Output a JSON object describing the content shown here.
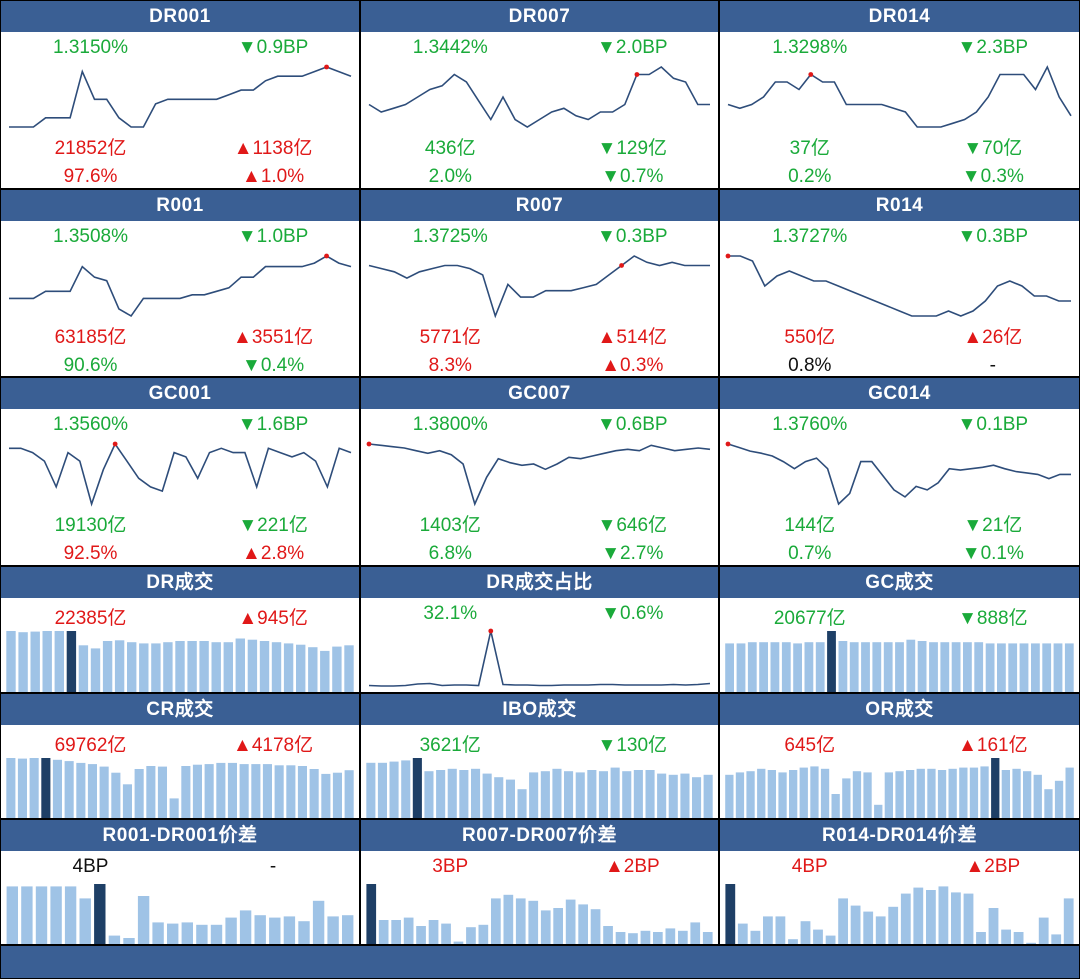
{
  "colors": {
    "header_bg": "#3a5f94",
    "up": "#e01818",
    "down": "#1aaa3a",
    "neutral": "#111111",
    "line": "#2e4d7a",
    "bar": "#9fc3e6",
    "bar_highlight": "#1e3f66",
    "grid_lines": "#000000"
  },
  "panels": [
    {
      "id": "dr001",
      "title": "DR001",
      "kind": "full",
      "rate": "1.3150%",
      "rate_color": "down",
      "rate_change": "▼0.9BP",
      "rate_change_color": "down",
      "volume": "21852亿",
      "volume_color": "up",
      "volume_change": "▲1138亿",
      "volume_change_color": "up",
      "share": "97.6%",
      "share_color": "up",
      "share_change": "▲1.0%",
      "share_change_color": "up",
      "chart_data": {
        "type": "line",
        "values": [
          1.29,
          1.29,
          1.29,
          1.3,
          1.3,
          1.3,
          1.35,
          1.32,
          1.32,
          1.3,
          1.29,
          1.29,
          1.315,
          1.32,
          1.32,
          1.32,
          1.32,
          1.32,
          1.325,
          1.33,
          1.33,
          1.34,
          1.345,
          1.345,
          1.345,
          1.35,
          1.355,
          1.35,
          1.345
        ],
        "marker_index": 26
      }
    },
    {
      "id": "dr007",
      "title": "DR007",
      "kind": "full",
      "rate": "1.3442%",
      "rate_color": "down",
      "rate_change": "▼2.0BP",
      "rate_change_color": "down",
      "volume": "436亿",
      "volume_color": "down",
      "volume_change": "▼129亿",
      "volume_change_color": "down",
      "share": "2.0%",
      "share_color": "down",
      "share_change": "▼0.7%",
      "share_change_color": "down",
      "chart_data": {
        "type": "line",
        "values": [
          1.32,
          1.31,
          1.315,
          1.32,
          1.33,
          1.34,
          1.345,
          1.36,
          1.35,
          1.325,
          1.3,
          1.33,
          1.3,
          1.29,
          1.3,
          1.31,
          1.315,
          1.305,
          1.3,
          1.31,
          1.31,
          1.32,
          1.36,
          1.36,
          1.37,
          1.355,
          1.35,
          1.32,
          1.32
        ],
        "marker_index": 22
      }
    },
    {
      "id": "dr014",
      "title": "DR014",
      "kind": "full",
      "rate": "1.3298%",
      "rate_color": "down",
      "rate_change": "▼2.3BP",
      "rate_change_color": "down",
      "volume": "37亿",
      "volume_color": "down",
      "volume_change": "▼70亿",
      "volume_change_color": "down",
      "share": "0.2%",
      "share_color": "down",
      "share_change": "▼0.3%",
      "share_change_color": "down",
      "chart_data": {
        "type": "line",
        "values": [
          1.3,
          1.295,
          1.3,
          1.31,
          1.33,
          1.33,
          1.32,
          1.34,
          1.33,
          1.33,
          1.3,
          1.3,
          1.3,
          1.3,
          1.295,
          1.29,
          1.27,
          1.27,
          1.27,
          1.275,
          1.28,
          1.29,
          1.31,
          1.34,
          1.34,
          1.34,
          1.32,
          1.35,
          1.31,
          1.285
        ],
        "marker_index": 7
      }
    },
    {
      "id": "r001",
      "title": "R001",
      "kind": "full",
      "rate": "1.3508%",
      "rate_color": "down",
      "rate_change": "▼1.0BP",
      "rate_change_color": "down",
      "volume": "63185亿",
      "volume_color": "up",
      "volume_change": "▲3551亿",
      "volume_change_color": "up",
      "share": "90.6%",
      "share_color": "down",
      "share_change": "▼0.4%",
      "share_change_color": "down",
      "chart_data": {
        "type": "line",
        "values": [
          1.3,
          1.3,
          1.3,
          1.31,
          1.31,
          1.31,
          1.345,
          1.33,
          1.325,
          1.285,
          1.275,
          1.3,
          1.3,
          1.3,
          1.3,
          1.305,
          1.305,
          1.31,
          1.315,
          1.33,
          1.33,
          1.345,
          1.345,
          1.345,
          1.345,
          1.35,
          1.36,
          1.35,
          1.345
        ],
        "marker_index": 26
      }
    },
    {
      "id": "r007",
      "title": "R007",
      "kind": "full",
      "rate": "1.3725%",
      "rate_color": "down",
      "rate_change": "▼0.3BP",
      "rate_change_color": "down",
      "volume": "5771亿",
      "volume_color": "up",
      "volume_change": "▲514亿",
      "volume_change_color": "up",
      "share": "8.3%",
      "share_color": "up",
      "share_change": "▲0.3%",
      "share_change_color": "up",
      "chart_data": {
        "type": "line",
        "values": [
          1.36,
          1.355,
          1.35,
          1.34,
          1.35,
          1.355,
          1.36,
          1.36,
          1.355,
          1.345,
          1.28,
          1.33,
          1.31,
          1.31,
          1.32,
          1.32,
          1.32,
          1.325,
          1.33,
          1.345,
          1.36,
          1.375,
          1.365,
          1.36,
          1.365,
          1.36,
          1.36,
          1.36
        ],
        "marker_index": 20
      }
    },
    {
      "id": "r014",
      "title": "R014",
      "kind": "full",
      "rate": "1.3727%",
      "rate_color": "down",
      "rate_change": "▼0.3BP",
      "rate_change_color": "down",
      "volume": "550亿",
      "volume_color": "up",
      "volume_change": "▲26亿",
      "volume_change_color": "up",
      "share": "0.8%",
      "share_color": "neutral",
      "share_change": "-",
      "share_change_color": "neutral",
      "chart_data": {
        "type": "line",
        "values": [
          1.4,
          1.4,
          1.395,
          1.37,
          1.38,
          1.385,
          1.38,
          1.375,
          1.375,
          1.37,
          1.365,
          1.36,
          1.355,
          1.35,
          1.345,
          1.34,
          1.34,
          1.34,
          1.345,
          1.34,
          1.345,
          1.355,
          1.37,
          1.375,
          1.37,
          1.36,
          1.36,
          1.355,
          1.355
        ],
        "marker_index": 0
      }
    },
    {
      "id": "gc001",
      "title": "GC001",
      "kind": "full",
      "rate": "1.3560%",
      "rate_color": "down",
      "rate_change": "▼1.6BP",
      "rate_change_color": "down",
      "volume": "19130亿",
      "volume_color": "down",
      "volume_change": "▼221亿",
      "volume_change_color": "down",
      "share": "92.5%",
      "share_color": "up",
      "share_change": "▲2.8%",
      "share_change_color": "up",
      "chart_data": {
        "type": "line",
        "values": [
          1.355,
          1.355,
          1.35,
          1.34,
          1.31,
          1.35,
          1.34,
          1.29,
          1.33,
          1.36,
          1.34,
          1.32,
          1.31,
          1.305,
          1.35,
          1.345,
          1.32,
          1.35,
          1.355,
          1.35,
          1.35,
          1.31,
          1.355,
          1.35,
          1.345,
          1.35,
          1.34,
          1.31,
          1.355,
          1.35
        ],
        "marker_index": 9
      }
    },
    {
      "id": "gc007",
      "title": "GC007",
      "kind": "full",
      "rate": "1.3800%",
      "rate_color": "down",
      "rate_change": "▼0.6BP",
      "rate_change_color": "down",
      "volume": "1403亿",
      "volume_color": "down",
      "volume_change": "▼646亿",
      "volume_change_color": "down",
      "share": "6.8%",
      "share_color": "down",
      "share_change": "▼2.7%",
      "share_change_color": "down",
      "chart_data": {
        "type": "line",
        "values": [
          1.38,
          1.378,
          1.376,
          1.374,
          1.37,
          1.366,
          1.37,
          1.364,
          1.35,
          1.29,
          1.33,
          1.358,
          1.352,
          1.348,
          1.35,
          1.342,
          1.35,
          1.36,
          1.358,
          1.362,
          1.366,
          1.37,
          1.372,
          1.37,
          1.378,
          1.374,
          1.37,
          1.372,
          1.374,
          1.372
        ],
        "marker_index": 0
      }
    },
    {
      "id": "gc014",
      "title": "GC014",
      "kind": "full",
      "rate": "1.3760%",
      "rate_color": "down",
      "rate_change": "▼0.1BP",
      "rate_change_color": "down",
      "volume": "144亿",
      "volume_color": "down",
      "volume_change": "▼21亿",
      "volume_change_color": "down",
      "share": "0.7%",
      "share_color": "down",
      "share_change": "▼0.1%",
      "share_change_color": "down",
      "chart_data": {
        "type": "line",
        "values": [
          1.375,
          1.37,
          1.365,
          1.362,
          1.358,
          1.35,
          1.34,
          1.35,
          1.355,
          1.34,
          1.29,
          1.305,
          1.35,
          1.35,
          1.33,
          1.31,
          1.3,
          1.315,
          1.31,
          1.32,
          1.34,
          1.338,
          1.34,
          1.342,
          1.345,
          1.34,
          1.336,
          1.334,
          1.332,
          1.326,
          1.332,
          1.332
        ],
        "marker_index": 0
      }
    },
    {
      "id": "dr_volume",
      "title": "DR成交",
      "kind": "bar",
      "left_value": "22385亿",
      "left_color": "up",
      "right_value": "▲945亿",
      "right_color": "up",
      "chart_data": {
        "type": "bar",
        "values": [
          98,
          96,
          97,
          98,
          98,
          98,
          75,
          70,
          82,
          83,
          80,
          78,
          78,
          80,
          82,
          82,
          82,
          80,
          80,
          86,
          84,
          82,
          80,
          78,
          76,
          72,
          66,
          73,
          75
        ],
        "highlight_index": 5
      }
    },
    {
      "id": "dr_share",
      "title": "DR成交占比",
      "kind": "line-small",
      "left_value": "32.1%",
      "left_color": "down",
      "right_value": "▼0.6%",
      "right_color": "down",
      "chart_data": {
        "type": "line",
        "values": [
          30,
          29.5,
          29.5,
          30,
          31.5,
          32,
          30,
          30.5,
          30.5,
          30,
          85,
          31,
          30.5,
          30.5,
          30,
          30,
          30.5,
          30.5,
          30.5,
          31,
          31,
          30.5,
          30.5,
          30.5,
          30.5,
          31,
          30.5,
          31,
          32
        ],
        "marker_index": 10
      }
    },
    {
      "id": "gc_volume",
      "title": "GC成交",
      "kind": "bar",
      "left_value": "20677亿",
      "left_color": "down",
      "right_value": "▼888亿",
      "right_color": "down",
      "chart_data": {
        "type": "bar",
        "values": [
          78,
          78,
          80,
          80,
          80,
          80,
          78,
          80,
          80,
          98,
          82,
          80,
          80,
          80,
          80,
          80,
          84,
          82,
          80,
          80,
          80,
          80,
          80,
          78,
          78,
          78,
          78,
          78,
          78,
          78,
          78
        ],
        "highlight_index": 9
      }
    },
    {
      "id": "cr_volume",
      "title": "CR成交",
      "kind": "bar",
      "left_value": "69762亿",
      "left_color": "up",
      "right_value": "▲4178亿",
      "right_color": "up",
      "chart_data": {
        "type": "bar",
        "values": [
          98,
          97,
          98,
          98,
          95,
          93,
          90,
          88,
          84,
          74,
          55,
          80,
          85,
          84,
          32,
          85,
          87,
          88,
          90,
          90,
          88,
          88,
          88,
          86,
          86,
          85,
          80,
          72,
          74,
          78
        ],
        "highlight_index": 3
      }
    },
    {
      "id": "ibo_volume",
      "title": "IBO成交",
      "kind": "bar",
      "left_value": "3621亿",
      "left_color": "down",
      "right_value": "▼130亿",
      "right_color": "down",
      "chart_data": {
        "type": "bar",
        "values": [
          92,
          92,
          94,
          96,
          100,
          78,
          80,
          82,
          80,
          82,
          74,
          68,
          64,
          48,
          76,
          78,
          82,
          78,
          76,
          80,
          78,
          84,
          78,
          80,
          80,
          74,
          72,
          74,
          68,
          72
        ],
        "highlight_index": 4
      }
    },
    {
      "id": "or_volume",
      "title": "OR成交",
      "kind": "bar",
      "left_value": "645亿",
      "left_color": "up",
      "right_value": "▲161亿",
      "right_color": "up",
      "chart_data": {
        "type": "bar",
        "values": [
          72,
          76,
          78,
          82,
          80,
          76,
          80,
          84,
          86,
          82,
          40,
          66,
          78,
          76,
          22,
          76,
          78,
          80,
          82,
          82,
          80,
          82,
          84,
          84,
          86,
          100,
          80,
          82,
          78,
          72,
          48,
          62,
          84
        ],
        "highlight_index": 25
      }
    },
    {
      "id": "r001_dr001_spread",
      "title": "R001-DR001价差",
      "kind": "bar",
      "left_value": "4BP",
      "left_color": "neutral",
      "right_value": "-",
      "right_color": "neutral",
      "chart_data": {
        "type": "bar",
        "values": [
          96,
          96,
          96,
          96,
          96,
          76,
          100,
          14,
          10,
          80,
          36,
          34,
          36,
          32,
          32,
          44,
          56,
          48,
          44,
          46,
          38,
          72,
          46,
          48
        ],
        "highlight_index": 6
      }
    },
    {
      "id": "r007_dr007_spread",
      "title": "R007-DR007价差",
      "kind": "bar",
      "left_value": "3BP",
      "left_color": "up",
      "right_value": "▲2BP",
      "right_color": "up",
      "chart_data": {
        "type": "bar",
        "values": [
          100,
          40,
          40,
          44,
          30,
          40,
          34,
          4,
          28,
          32,
          76,
          82,
          76,
          72,
          56,
          60,
          74,
          66,
          58,
          30,
          20,
          18,
          22,
          20,
          26,
          22,
          36,
          20
        ],
        "highlight_index": 0
      }
    },
    {
      "id": "r014_dr014_spread",
      "title": "R014-DR014价差",
      "kind": "bar",
      "left_value": "4BP",
      "left_color": "up",
      "right_value": "▲2BP",
      "right_color": "up",
      "chart_data": {
        "type": "bar",
        "values": [
          100,
          34,
          22,
          46,
          46,
          8,
          38,
          24,
          14,
          76,
          64,
          54,
          46,
          62,
          84,
          94,
          90,
          96,
          86,
          84,
          20,
          60,
          24,
          20,
          2,
          44,
          16,
          76
        ],
        "highlight_index": 0
      }
    }
  ]
}
